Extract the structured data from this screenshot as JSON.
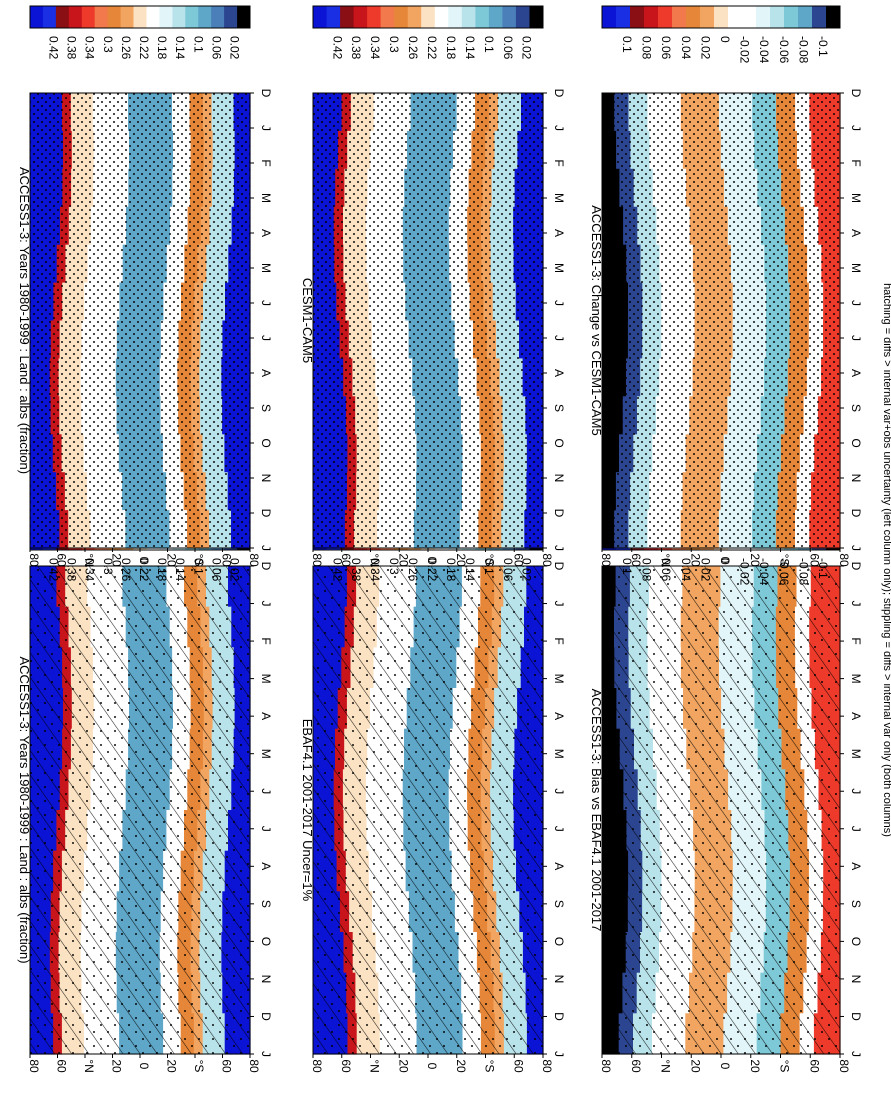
{
  "figure": {
    "caption": "hatching = diffs > internal var+obs uncertainty (left column only); stippling = diffs > internal var only (both columns)",
    "month_ticks": [
      "D",
      "J",
      "F",
      "M",
      "A",
      "M",
      "J",
      "J",
      "A",
      "S",
      "O",
      "N",
      "D",
      "J"
    ],
    "lat_ticks": [
      "80",
      "60",
      "°N",
      "20",
      "0",
      "20",
      "°S",
      "60",
      "80"
    ],
    "colors": {
      "abs_palette": [
        "#0b13d4",
        "#1a2ee3",
        "#8a0f14",
        "#c8151b",
        "#ee3a2a",
        "#f2794b",
        "#e68638",
        "#f1a561",
        "#fbe2c2",
        "#ffffff",
        "#e2f5f8",
        "#b9e3ea",
        "#7ec9d7",
        "#5ea7c9",
        "#4a7fb9",
        "#2c4591",
        "#000000"
      ],
      "diff_palette": [
        "#0b13d4",
        "#1a2ee3",
        "#8a0f14",
        "#c8151b",
        "#ee3a2a",
        "#f2794b",
        "#e68638",
        "#f1a561",
        "#fbe2c2",
        "#ffffff",
        "#ffffff",
        "#e2f5f8",
        "#b9e3ea",
        "#7ec9d7",
        "#5ea7c9",
        "#2c4591",
        "#000000"
      ]
    }
  },
  "chart_data": [
    {
      "type": "heatmap",
      "title": "ACCESS1-3: Years 1980-1999 : Land : albs (fraction)",
      "colorbar_labels": [
        "0.42",
        "0.38",
        "0.34",
        "0.3",
        "0.26",
        "0.22",
        "0.18",
        "0.14",
        "0.1",
        "0.06",
        "0.02"
      ],
      "hatching": true,
      "stippling": true
    },
    {
      "type": "heatmap",
      "title": "ACCESS1-3: Years 1980-1999 : Land : albs (fraction)",
      "colorbar_labels": [
        "0.42",
        "0.38",
        "0.34",
        "0.3",
        "0.26",
        "0.22",
        "0.18",
        "0.14",
        "0.1",
        "0.06",
        "0.02"
      ],
      "hatching": false,
      "stippling": true
    },
    {
      "type": "heatmap",
      "title": "EBAF4.1 2001-2017 Uncer=1%",
      "colorbar_labels": [
        "0.42",
        "0.38",
        "0.34",
        "0.3",
        "0.26",
        "0.22",
        "0.18",
        "0.14",
        "0.1",
        "0.06",
        "0.02"
      ],
      "hatching": true,
      "stippling": true
    },
    {
      "type": "heatmap",
      "title": "CESM1-CAM5",
      "colorbar_labels": [
        "0.42",
        "0.38",
        "0.34",
        "0.3",
        "0.26",
        "0.22",
        "0.18",
        "0.14",
        "0.1",
        "0.06",
        "0.02"
      ],
      "hatching": false,
      "stippling": true
    },
    {
      "type": "heatmap",
      "title": "ACCESS1-3: Bias vs EBAF4.1 2001-2017",
      "colorbar_labels": [
        "0.1",
        "0.08",
        "0.06",
        "0.04",
        "0.02",
        "0",
        "-0.02",
        "-0.04",
        "-0.06",
        "-0.08",
        "-0.1"
      ],
      "hatching": true,
      "stippling": true
    },
    {
      "type": "heatmap",
      "title": "ACCESS1-3: Change vs CESM1-CAM5",
      "colorbar_labels": [
        "0.1",
        "0.08",
        "0.06",
        "0.04",
        "0.02",
        "0",
        "-0.02",
        "-0.04",
        "-0.06",
        "-0.08",
        "-0.1"
      ],
      "hatching": false,
      "stippling": true
    }
  ]
}
